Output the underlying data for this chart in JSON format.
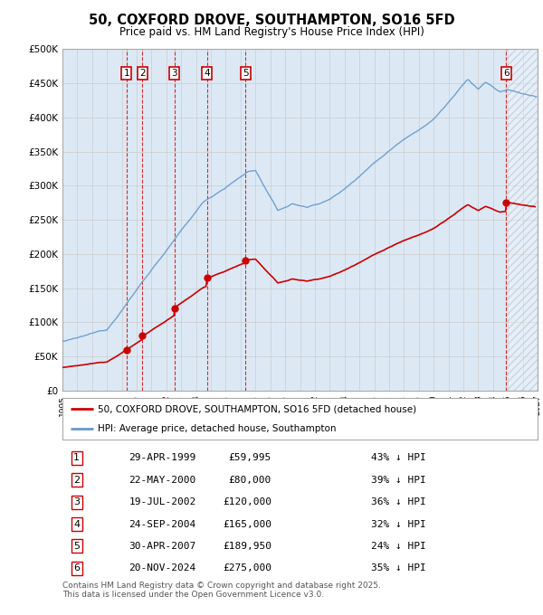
{
  "title": "50, COXFORD DROVE, SOUTHAMPTON, SO16 5FD",
  "subtitle": "Price paid vs. HM Land Registry's House Price Index (HPI)",
  "ylim": [
    0,
    500000
  ],
  "yticks": [
    0,
    50000,
    100000,
    150000,
    200000,
    250000,
    300000,
    350000,
    400000,
    450000,
    500000
  ],
  "ytick_labels": [
    "£0",
    "£50K",
    "£100K",
    "£150K",
    "£200K",
    "£250K",
    "£300K",
    "£350K",
    "£400K",
    "£450K",
    "£500K"
  ],
  "sales": [
    {
      "num": 1,
      "date_x": 1999.32,
      "price": 59995
    },
    {
      "num": 2,
      "date_x": 2000.39,
      "price": 80000
    },
    {
      "num": 3,
      "date_x": 2002.54,
      "price": 120000
    },
    {
      "num": 4,
      "date_x": 2004.73,
      "price": 165000
    },
    {
      "num": 5,
      "date_x": 2007.33,
      "price": 189950
    },
    {
      "num": 6,
      "date_x": 2024.89,
      "price": 275000
    }
  ],
  "sale_color": "#cc0000",
  "hpi_color": "#6699cc",
  "plot_bg_color": "#dce9f5",
  "background_color": "#ffffff",
  "grid_color": "#b0c4d8",
  "grid_color2": "#cccccc",
  "vline_color": "#cc0000",
  "table_rows": [
    [
      "1",
      "29-APR-1999",
      "£59,995",
      "43% ↓ HPI"
    ],
    [
      "2",
      "22-MAY-2000",
      "£80,000",
      "39% ↓ HPI"
    ],
    [
      "3",
      "19-JUL-2002",
      "£120,000",
      "36% ↓ HPI"
    ],
    [
      "4",
      "24-SEP-2004",
      "£165,000",
      "32% ↓ HPI"
    ],
    [
      "5",
      "30-APR-2007",
      "£189,950",
      "24% ↓ HPI"
    ],
    [
      "6",
      "20-NOV-2024",
      "£275,000",
      "35% ↓ HPI"
    ]
  ],
  "legend_sale": "50, COXFORD DROVE, SOUTHAMPTON, SO16 5FD (detached house)",
  "legend_hpi": "HPI: Average price, detached house, Southampton",
  "footnote": "Contains HM Land Registry data © Crown copyright and database right 2025.\nThis data is licensed under the Open Government Licence v3.0.",
  "xmin": 1995.0,
  "xmax": 2027.0
}
